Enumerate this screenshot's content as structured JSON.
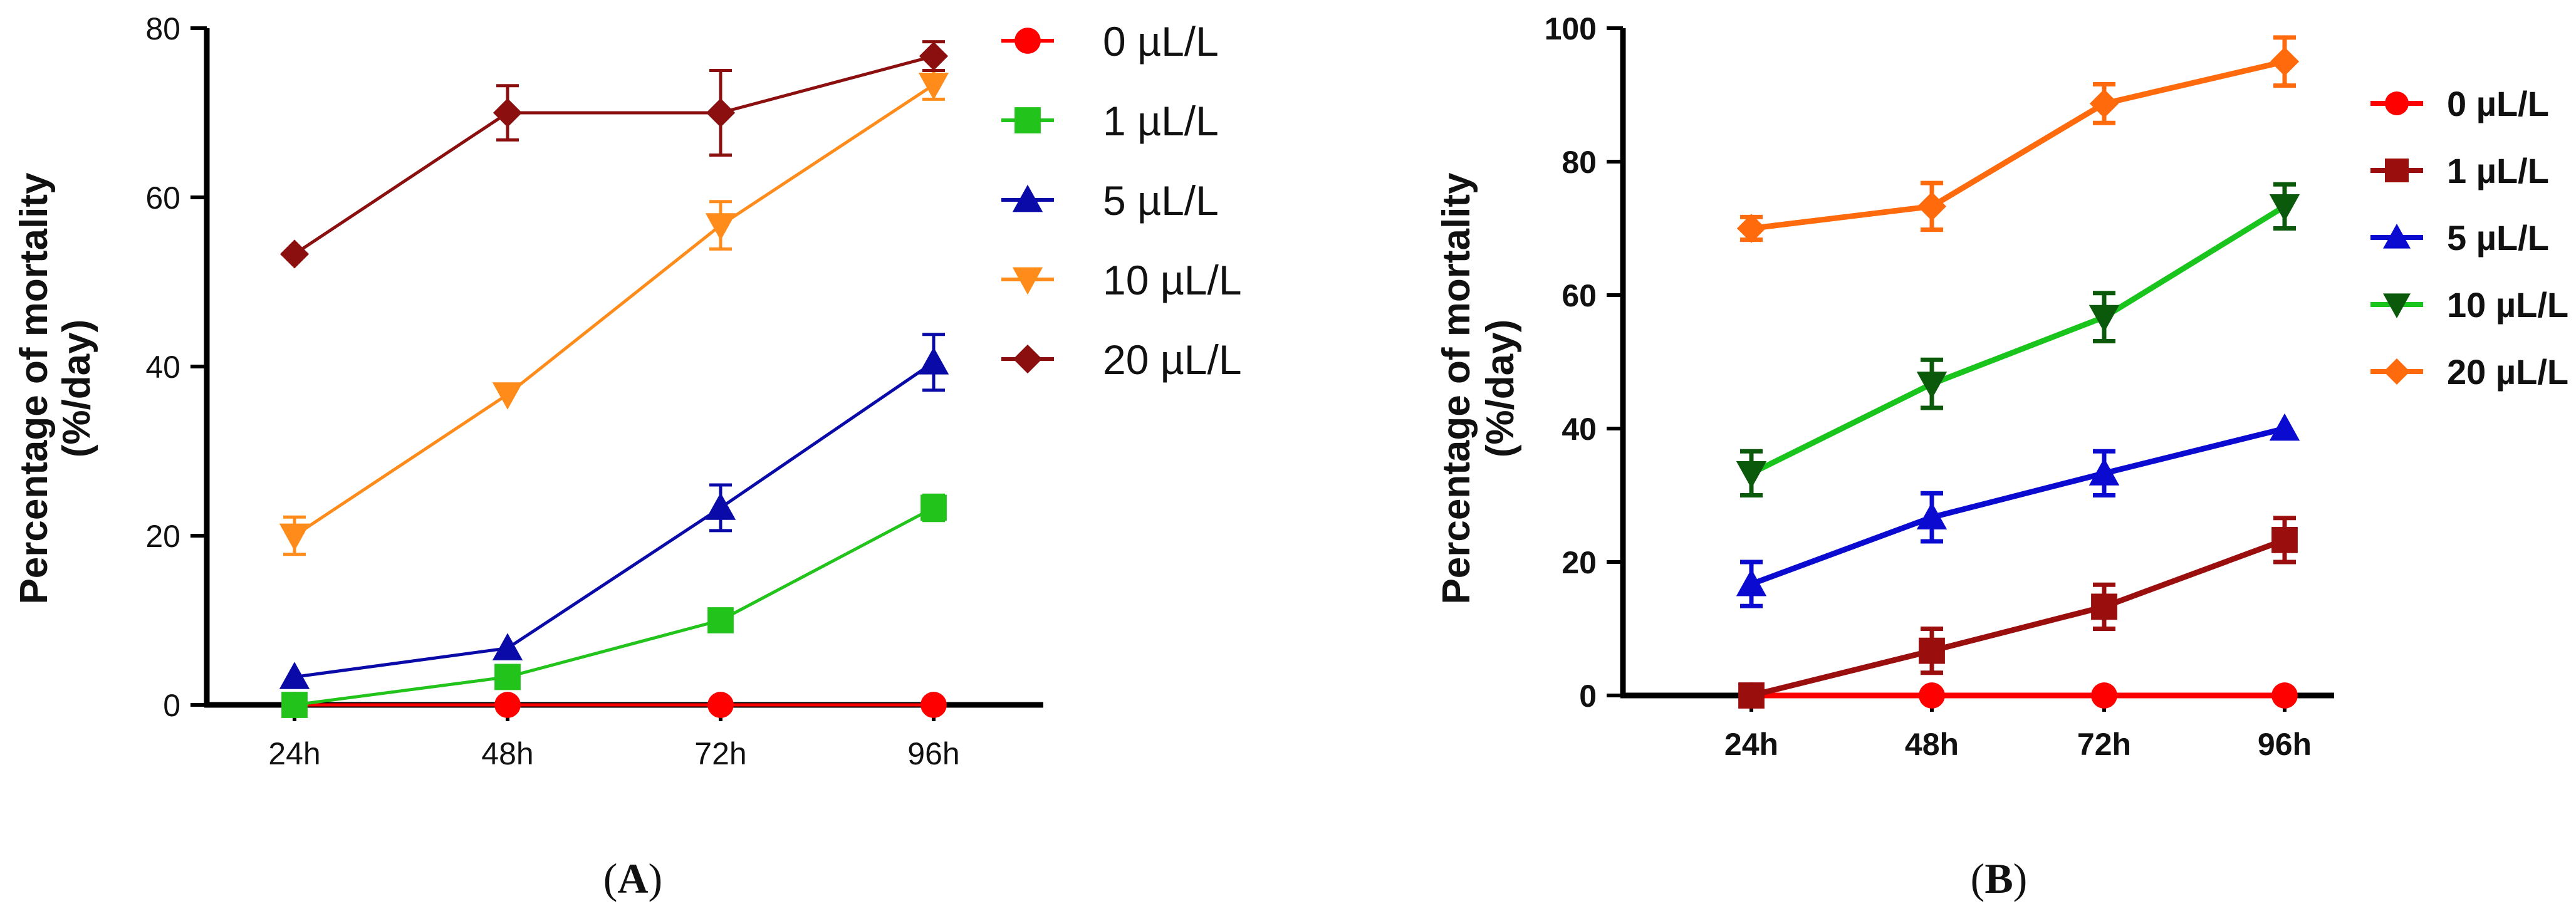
{
  "figure": {
    "panels": [
      "A",
      "B"
    ]
  },
  "chart_data": [
    {
      "panel": "A",
      "caption_open": "(",
      "caption_letter": "A",
      "caption_close": ")",
      "type": "line",
      "xlabel": "",
      "ylabel_line1": "Percentage of mortality",
      "ylabel_line2": "(%/day)",
      "categories": [
        "24h",
        "48h",
        "72h",
        "96h"
      ],
      "ylim": [
        0,
        80
      ],
      "yticks": [
        0,
        20,
        40,
        60,
        80
      ],
      "grid": false,
      "legend_position": "right",
      "series": [
        {
          "name": "0 µL/L",
          "marker": "circle",
          "color": "#ff0000",
          "values": [
            0,
            0,
            0,
            0
          ],
          "errors": [
            0,
            0,
            0,
            0
          ]
        },
        {
          "name": "1 µL/L",
          "marker": "square",
          "color": "#22c41c",
          "values": [
            0,
            3.3,
            10,
            23.3
          ],
          "errors": [
            0,
            0,
            0,
            1.5
          ]
        },
        {
          "name": "5 µL/L",
          "marker": "triangle-up",
          "color": "#0a0aa8",
          "values": [
            3.3,
            6.7,
            23.3,
            40.5
          ],
          "errors": [
            0,
            0,
            2.7,
            3.3
          ]
        },
        {
          "name": "10 µL/L",
          "marker": "triangle-down",
          "color": "#ff8c1a",
          "values": [
            20,
            36.7,
            56.7,
            73.3
          ],
          "errors": [
            2.2,
            0,
            2.8,
            1.7
          ]
        },
        {
          "name": "20 µL/L",
          "marker": "diamond",
          "color": "#8b0f0f",
          "values": [
            53.3,
            70,
            70,
            76.7
          ],
          "errors": [
            0,
            3.2,
            5,
            1.7
          ]
        }
      ]
    },
    {
      "panel": "B",
      "caption_open": "(",
      "caption_letter": "B",
      "caption_close": ")",
      "type": "line",
      "xlabel": "",
      "ylabel_line1": "Percentage of mortality",
      "ylabel_line2": "(%/day)",
      "categories": [
        "24h",
        "48h",
        "72h",
        "96h"
      ],
      "ylim": [
        0,
        100
      ],
      "yticks": [
        0,
        20,
        40,
        60,
        80,
        100
      ],
      "grid": false,
      "legend_position": "right",
      "series": [
        {
          "name": "0 µL/L",
          "marker": "circle",
          "color": "#ff0000",
          "marker_color": "#ff0000",
          "values": [
            0,
            0,
            0,
            0
          ],
          "errors": [
            0,
            0,
            0,
            0
          ]
        },
        {
          "name": "1 µL/L",
          "marker": "square",
          "color": "#9b0e0e",
          "marker_color": "#9b0e0e",
          "values": [
            0,
            6.7,
            13.3,
            23.3
          ],
          "errors": [
            0,
            3.3,
            3.3,
            3.3
          ]
        },
        {
          "name": "5 µL/L",
          "marker": "triangle-up",
          "color": "#0a0ad0",
          "marker_color": "#0a0ad0",
          "values": [
            16.7,
            26.7,
            33.3,
            40
          ],
          "errors": [
            3.3,
            3.6,
            3.3,
            0
          ]
        },
        {
          "name": "10 µL/L",
          "marker": "triangle-down",
          "color": "#19c41c",
          "marker_color": "#0b5a0b",
          "values": [
            33.3,
            46.7,
            56.7,
            73.3
          ],
          "errors": [
            3.3,
            3.6,
            3.6,
            3.3
          ]
        },
        {
          "name": "20 µL/L",
          "marker": "diamond",
          "color": "#ff6a0d",
          "marker_color": "#ff6a0d",
          "values": [
            70,
            73.3,
            88.7,
            95
          ],
          "errors": [
            1.7,
            3.5,
            2.9,
            3.6
          ]
        }
      ]
    }
  ]
}
